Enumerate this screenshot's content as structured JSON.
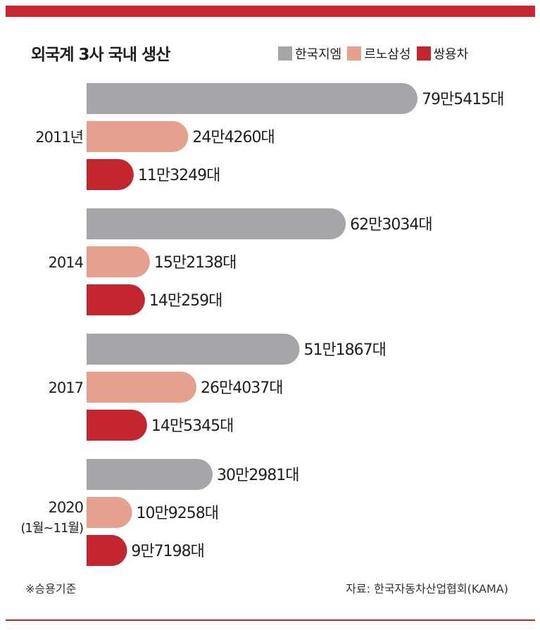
{
  "title": "외국계 3사 국내 생산",
  "note": "※승용기준",
  "source": "자료: 한국자동차산업협회(KAMA)",
  "colors": {
    "accent": "#c8252e",
    "gm": "#a5a6a9",
    "renault": "#e5a18e",
    "ssangyong": "#c3262f"
  },
  "legend": [
    {
      "name": "한국지엠",
      "color": "#a5a6a9"
    },
    {
      "name": "르노삼성",
      "color": "#e5a18e"
    },
    {
      "name": "쌍용차",
      "color": "#c3262f"
    }
  ],
  "chart_data": {
    "type": "bar",
    "orientation": "horizontal",
    "title": "외국계 3사 국내 생산",
    "categories": [
      "2011년",
      "2014",
      "2017",
      "2020"
    ],
    "category_sublabels": [
      "",
      "",
      "",
      "(1월~11월)"
    ],
    "series": [
      {
        "name": "한국지엠",
        "color": "#a5a6a9",
        "values": [
          795415,
          623034,
          511867,
          302981
        ],
        "labels": [
          "79만5415대",
          "62만3034대",
          "51만1867대",
          "30만2981대"
        ]
      },
      {
        "name": "르노삼성",
        "color": "#e5a18e",
        "values": [
          244260,
          152138,
          264037,
          109258
        ],
        "labels": [
          "24만4260대",
          "15만2138대",
          "26만4037대",
          "10만9258대"
        ]
      },
      {
        "name": "쌍용차",
        "color": "#c3262f",
        "values": [
          113249,
          140259,
          145345,
          97198
        ],
        "labels": [
          "11만3249대",
          "14만259대",
          "14만5345대",
          "9만7198대"
        ]
      }
    ],
    "legend_position": "top-right",
    "grid": false,
    "xlim": [
      0,
      795415
    ]
  }
}
